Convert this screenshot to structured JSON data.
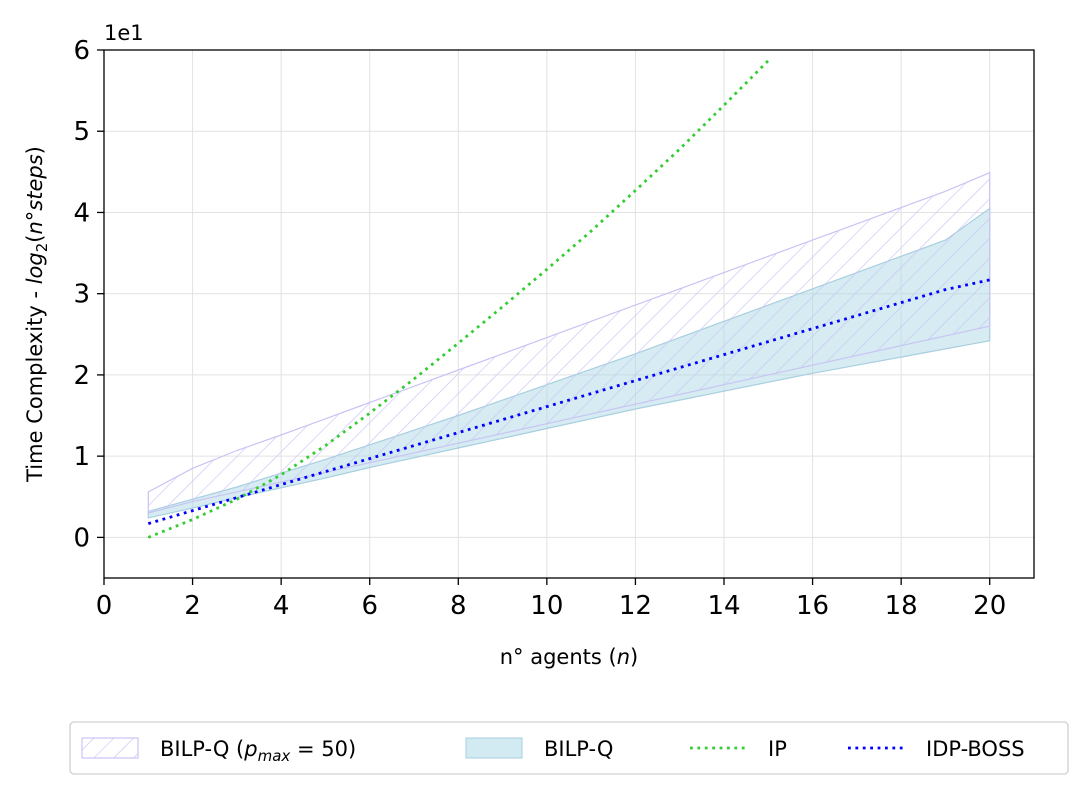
{
  "chart_data": {
    "type": "line",
    "title": "",
    "xlabel": "n° agents (n)",
    "ylabel": "Time Complexity - log2(n°steps)",
    "y_offset_label": "1e1",
    "xlim": [
      0,
      21
    ],
    "ylim": [
      -5,
      60
    ],
    "x_ticks": [
      "0",
      "2",
      "4",
      "6",
      "8",
      "10",
      "12",
      "14",
      "16",
      "18",
      "20"
    ],
    "y_ticks": [
      "0",
      "1",
      "2",
      "3",
      "4",
      "5",
      "6"
    ],
    "grid": true,
    "legend_position": "bottom-outside",
    "x": [
      1,
      2,
      3,
      4,
      5,
      6,
      7,
      8,
      9,
      10,
      11,
      12,
      13,
      14,
      15,
      16,
      17,
      18,
      19,
      20
    ],
    "series": [
      {
        "name": "BILP-Q (p_max = 50)",
        "kind": "hatched-band",
        "color": "#c8c4f4",
        "upper": [
          5.6,
          8.5,
          10.7,
          12.6,
          14.6,
          16.6,
          18.6,
          20.6,
          22.6,
          24.6,
          26.6,
          28.6,
          30.6,
          32.6,
          34.6,
          36.6,
          38.6,
          40.6,
          42.6,
          44.9
        ],
        "lower": [
          3.0,
          4.4,
          5.6,
          6.8,
          8.0,
          9.2,
          10.4,
          11.6,
          12.8,
          14.0,
          15.2,
          16.4,
          17.6,
          18.8,
          20.0,
          21.2,
          22.4,
          23.6,
          24.8,
          26.0
        ]
      },
      {
        "name": "BILP-Q",
        "kind": "filled-band",
        "color": "#add8e6",
        "upper": [
          3.2,
          4.7,
          6.2,
          7.9,
          9.6,
          11.4,
          13.2,
          15.0,
          16.9,
          18.8,
          20.7,
          22.6,
          24.6,
          26.6,
          28.6,
          30.6,
          32.6,
          34.6,
          36.6,
          40.5
        ],
        "lower": [
          2.4,
          3.6,
          4.9,
          6.1,
          7.3,
          8.6,
          9.8,
          11.0,
          12.2,
          13.4,
          14.6,
          15.8,
          16.9,
          18.0,
          19.1,
          20.2,
          21.2,
          22.2,
          23.2,
          24.2
        ]
      },
      {
        "name": "IP",
        "kind": "dotted-line",
        "color": "#32cd32",
        "x": [
          1,
          2,
          3,
          4,
          5,
          6,
          7,
          8,
          9,
          10,
          11,
          12,
          13,
          14,
          15
        ],
        "values": [
          0.0,
          2.2,
          4.7,
          7.7,
          11.3,
          15.3,
          19.5,
          23.9,
          28.4,
          33.0,
          37.7,
          42.7,
          47.8,
          53.2,
          58.7
        ]
      },
      {
        "name": "IDP-BOSS",
        "kind": "dotted-line",
        "color": "#0000ff",
        "values": [
          1.7,
          3.3,
          4.9,
          6.5,
          8.1,
          9.7,
          11.3,
          12.9,
          14.5,
          16.1,
          17.7,
          19.3,
          20.9,
          22.5,
          24.1,
          25.7,
          27.3,
          28.9,
          30.5,
          31.7
        ]
      }
    ],
    "legend": [
      {
        "id": "bilpq-pmax",
        "base": "BILP-Q (",
        "sym": "p",
        "sub": "max",
        "tail": " = 50)"
      },
      {
        "id": "bilpq",
        "label": "BILP-Q"
      },
      {
        "id": "ip",
        "label": "IP"
      },
      {
        "id": "idp-boss",
        "label": "IDP-BOSS"
      }
    ],
    "xlabel_parts": {
      "base": "n° agents (",
      "var": "n",
      "tail": ")"
    },
    "ylabel_parts": {
      "base": "Time Complexity - ",
      "log": "log",
      "sub": "2",
      "open": "(",
      "var": "n°steps",
      "close": ")"
    }
  }
}
